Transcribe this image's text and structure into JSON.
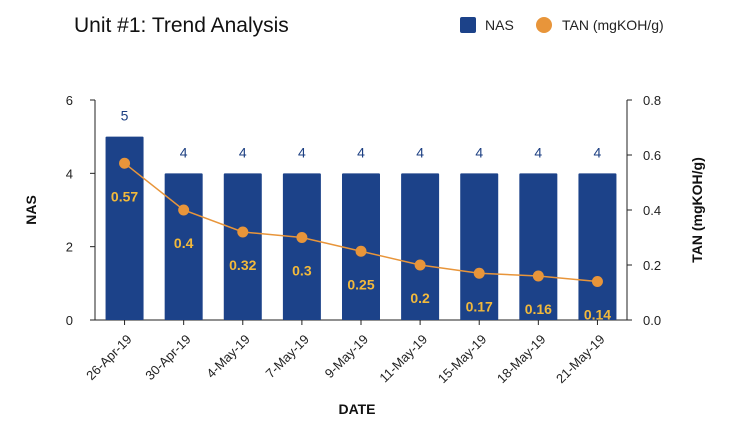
{
  "chart_data": {
    "type": "bar",
    "title": "Unit #1: Trend Analysis",
    "xlabel": "DATE",
    "ylabel": "NAS",
    "y2label": "TAN (mgKOH/g)",
    "categories": [
      "26-Apr-19",
      "30-Apr-19",
      "4-May-19",
      "7-May-19",
      "9-May-19",
      "11-May-19",
      "15-May-19",
      "18-May-19",
      "21-May-19"
    ],
    "ylim": [
      0,
      6
    ],
    "y2lim": [
      0,
      0.8
    ],
    "yticks": [
      "0",
      "2",
      "4",
      "6"
    ],
    "y2ticks": [
      "0.0",
      "0.2",
      "0.4",
      "0.6",
      "0.8"
    ],
    "grid": false,
    "legend_position": "top-right",
    "series": [
      {
        "name": "NAS",
        "type": "bar",
        "axis": "left",
        "color": "#1c4289",
        "values": [
          5,
          4,
          4,
          4,
          4,
          4,
          4,
          4,
          4
        ],
        "labels": [
          "5",
          "4",
          "4",
          "4",
          "4",
          "4",
          "4",
          "4",
          "4"
        ]
      },
      {
        "name": "TAN (mgKOH/g)",
        "type": "line",
        "axis": "right",
        "color": "#e8953a",
        "label_color": "#f2b93b",
        "values": [
          0.57,
          0.4,
          0.32,
          0.3,
          0.25,
          0.2,
          0.17,
          0.16,
          0.14
        ],
        "labels": [
          "0.57",
          "0.4",
          "0.32",
          "0.3",
          "0.25",
          "0.2",
          "0.17",
          "0.16",
          "0.14"
        ]
      }
    ]
  }
}
